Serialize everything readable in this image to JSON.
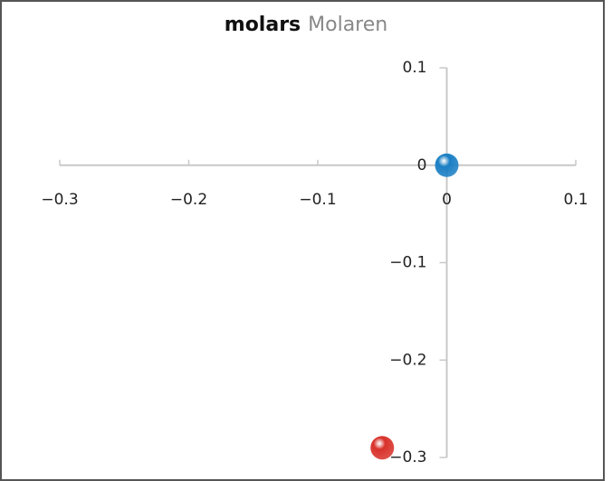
{
  "chart_data": {
    "type": "scatter",
    "title": "molars",
    "subtitle": "Molaren",
    "xlim": [
      -0.3,
      0.1
    ],
    "xticks": [
      {
        "value": -0.3,
        "label": "−0.3"
      },
      {
        "value": -0.2,
        "label": "−0.2"
      },
      {
        "value": -0.1,
        "label": "−0.1"
      },
      0,
      0.1
    ],
    "ylim": [
      -0.3,
      0.1
    ],
    "yticks": [
      {
        "value": -0.3,
        "label": "−0.3"
      },
      {
        "value": -0.2,
        "label": "−0.2"
      },
      {
        "value": -0.1,
        "label": "−0.1"
      },
      0,
      0.1
    ],
    "series": [
      {
        "color": "#1a7fc4",
        "x": [
          0
        ],
        "values": [
          0
        ]
      },
      {
        "color": "#d8322a",
        "x": [
          -0.05
        ],
        "values": [
          -0.29
        ]
      }
    ]
  }
}
